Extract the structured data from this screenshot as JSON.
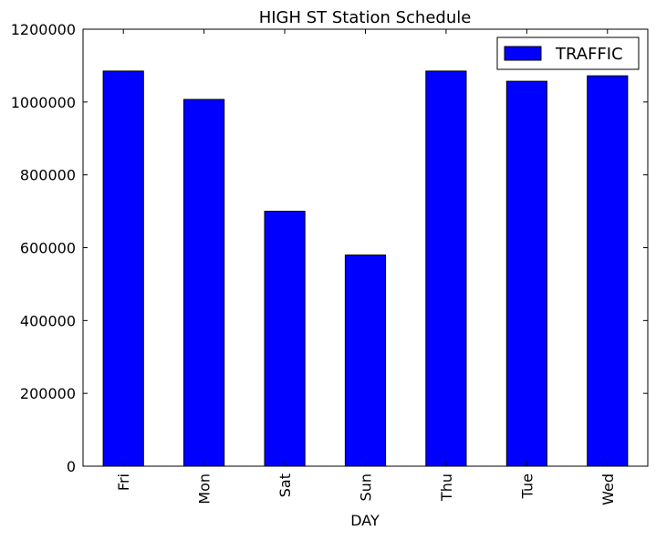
{
  "chart_data": {
    "type": "bar",
    "title": "HIGH ST Station Schedule",
    "xlabel": "DAY",
    "ylabel": "",
    "categories": [
      "Fri",
      "Mon",
      "Sat",
      "Sun",
      "Thu",
      "Tue",
      "Wed"
    ],
    "series": [
      {
        "name": "TRAFFIC",
        "values": [
          1085000,
          1007000,
          700000,
          580000,
          1085000,
          1057000,
          1072000
        ],
        "color": "#0000ff"
      }
    ],
    "ylim": [
      0,
      1200000
    ],
    "yticks": [
      "0",
      "200000",
      "400000",
      "600000",
      "800000",
      "1000000",
      "1200000"
    ],
    "grid": false,
    "legend_position": "top-right"
  }
}
